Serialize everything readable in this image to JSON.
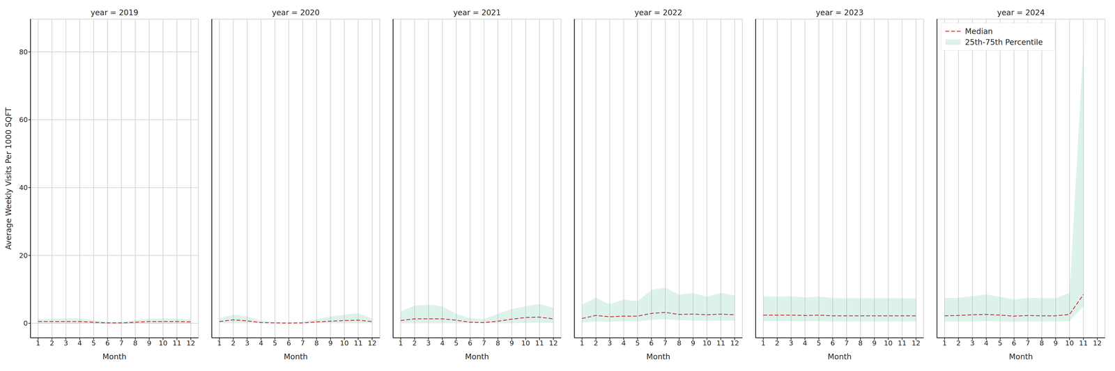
{
  "chart_data": [
    {
      "type": "line",
      "title": "year = 2019",
      "xlabel": "Month",
      "ylabel": "Average Weekly Visits Per 1000 SQFT",
      "tick_labels": true,
      "grid": true,
      "x": [
        1,
        2,
        3,
        4,
        5,
        6,
        7,
        8,
        9,
        10,
        11,
        12
      ],
      "xlim": [
        0.45,
        12.55
      ],
      "xticks": [
        1,
        2,
        3,
        4,
        5,
        6,
        7,
        8,
        9,
        10,
        11,
        12
      ],
      "ylim": [
        -4.3,
        89.7
      ],
      "yticks": [
        0,
        20,
        40,
        60,
        80
      ],
      "series": [
        {
          "name": "Median",
          "type": "line",
          "line_style": "dashed",
          "color": "#c8363d",
          "values": [
            0.5,
            0.5,
            0.5,
            0.5,
            0.3,
            0.1,
            0.1,
            0.3,
            0.5,
            0.5,
            0.5,
            0.4
          ]
        },
        {
          "name": "25th-75th Percentile",
          "type": "area",
          "color": "#66c2a5",
          "values": [
            [
              0,
              1.2
            ],
            [
              0,
              1.3
            ],
            [
              0,
              1.4
            ],
            [
              0,
              1.4
            ],
            [
              0,
              0.9
            ],
            [
              0,
              0.4
            ],
            [
              0,
              0.4
            ],
            [
              0,
              0.9
            ],
            [
              0,
              1.3
            ],
            [
              0,
              1.4
            ],
            [
              0,
              1.3
            ],
            [
              0,
              1.1
            ]
          ]
        }
      ]
    },
    {
      "type": "line",
      "title": "year = 2020",
      "xlabel": "Month",
      "tick_labels": "x",
      "grid": true,
      "x": [
        1,
        2,
        3,
        4,
        5,
        6,
        7,
        8,
        9,
        10,
        11,
        12
      ],
      "xlim": [
        0.45,
        12.55
      ],
      "xticks": [
        1,
        2,
        3,
        4,
        5,
        6,
        7,
        8,
        9,
        10,
        11,
        12
      ],
      "ylim": [
        -4.3,
        89.7
      ],
      "yticks": [
        0,
        20,
        40,
        60,
        80
      ],
      "series": [
        {
          "name": "Median",
          "type": "line",
          "line_style": "dashed",
          "color": "#c8363d",
          "values": [
            0.5,
            1.0,
            0.7,
            0.2,
            0.1,
            0.05,
            0.1,
            0.4,
            0.6,
            0.8,
            0.9,
            0.5
          ]
        },
        {
          "name": "25th-75th Percentile",
          "type": "area",
          "color": "#66c2a5",
          "values": [
            [
              0,
              1.5
            ],
            [
              0,
              2.5
            ],
            [
              0,
              2.0
            ],
            [
              0,
              0.8
            ],
            [
              0,
              0.3
            ],
            [
              0,
              0.2
            ],
            [
              0,
              0.5
            ],
            [
              0,
              1.2
            ],
            [
              0,
              2.0
            ],
            [
              0,
              2.5
            ],
            [
              0,
              3.0
            ],
            [
              0,
              1.3
            ]
          ]
        }
      ]
    },
    {
      "type": "line",
      "title": "year = 2021",
      "xlabel": "Month",
      "tick_labels": "x",
      "grid": true,
      "x": [
        1,
        2,
        3,
        4,
        5,
        6,
        7,
        8,
        9,
        10,
        11,
        12
      ],
      "xlim": [
        0.45,
        12.55
      ],
      "xticks": [
        1,
        2,
        3,
        4,
        5,
        6,
        7,
        8,
        9,
        10,
        11,
        12
      ],
      "ylim": [
        -4.3,
        89.7
      ],
      "yticks": [
        0,
        20,
        40,
        60,
        80
      ],
      "series": [
        {
          "name": "Median",
          "type": "line",
          "line_style": "dashed",
          "color": "#c8363d",
          "values": [
            0.8,
            1.3,
            1.3,
            1.3,
            0.9,
            0.3,
            0.2,
            0.6,
            1.2,
            1.7,
            1.8,
            1.3
          ]
        },
        {
          "name": "25th-75th Percentile",
          "type": "area",
          "color": "#66c2a5",
          "values": [
            [
              0,
              3.5
            ],
            [
              0,
              5.2
            ],
            [
              0,
              5.5
            ],
            [
              0,
              5.0
            ],
            [
              0,
              2.8
            ],
            [
              0,
              1.5
            ],
            [
              0,
              1.2
            ],
            [
              0,
              2.8
            ],
            [
              0,
              4.2
            ],
            [
              0.1,
              5.0
            ],
            [
              0.2,
              5.7
            ],
            [
              0.1,
              4.6
            ]
          ]
        }
      ]
    },
    {
      "type": "line",
      "title": "year = 2022",
      "xlabel": "Month",
      "tick_labels": "x",
      "grid": true,
      "x": [
        1,
        2,
        3,
        4,
        5,
        6,
        7,
        8,
        9,
        10,
        11,
        12
      ],
      "xlim": [
        0.45,
        12.55
      ],
      "xticks": [
        1,
        2,
        3,
        4,
        5,
        6,
        7,
        8,
        9,
        10,
        11,
        12
      ],
      "ylim": [
        -4.3,
        89.7
      ],
      "yticks": [
        0,
        20,
        40,
        60,
        80
      ],
      "series": [
        {
          "name": "Median",
          "type": "line",
          "line_style": "dashed",
          "color": "#c8363d",
          "values": [
            1.4,
            2.3,
            1.9,
            2.1,
            2.1,
            2.9,
            3.2,
            2.6,
            2.7,
            2.5,
            2.7,
            2.5
          ]
        },
        {
          "name": "25th-75th Percentile",
          "type": "area",
          "color": "#66c2a5",
          "values": [
            [
              0.2,
              5.5
            ],
            [
              0.5,
              7.5
            ],
            [
              0.4,
              5.6
            ],
            [
              0.6,
              7.0
            ],
            [
              0.5,
              6.5
            ],
            [
              1.0,
              9.8
            ],
            [
              1.2,
              10.5
            ],
            [
              0.9,
              8.4
            ],
            [
              0.8,
              8.9
            ],
            [
              0.7,
              7.8
            ],
            [
              0.8,
              9.0
            ],
            [
              0.7,
              8.2
            ]
          ]
        }
      ]
    },
    {
      "type": "line",
      "title": "year = 2023",
      "xlabel": "Month",
      "tick_labels": "x",
      "grid": true,
      "x": [
        1,
        2,
        3,
        4,
        5,
        6,
        7,
        8,
        9,
        10,
        11,
        12
      ],
      "xlim": [
        0.45,
        12.55
      ],
      "xticks": [
        1,
        2,
        3,
        4,
        5,
        6,
        7,
        8,
        9,
        10,
        11,
        12
      ],
      "ylim": [
        -4.3,
        89.7
      ],
      "yticks": [
        0,
        20,
        40,
        60,
        80
      ],
      "series": [
        {
          "name": "Median",
          "type": "line",
          "line_style": "dashed",
          "color": "#c8363d",
          "values": [
            2.4,
            2.4,
            2.4,
            2.3,
            2.4,
            2.2,
            2.2,
            2.2,
            2.2,
            2.2,
            2.2,
            2.2
          ]
        },
        {
          "name": "25th-75th Percentile",
          "type": "area",
          "color": "#66c2a5",
          "values": [
            [
              0.6,
              8.0
            ],
            [
              0.6,
              7.8
            ],
            [
              0.6,
              8.0
            ],
            [
              0.6,
              7.6
            ],
            [
              0.6,
              7.9
            ],
            [
              0.5,
              7.4
            ],
            [
              0.5,
              7.4
            ],
            [
              0.5,
              7.4
            ],
            [
              0.5,
              7.4
            ],
            [
              0.5,
              7.4
            ],
            [
              0.5,
              7.4
            ],
            [
              0.5,
              7.3
            ]
          ]
        }
      ]
    },
    {
      "type": "line",
      "title": "year = 2024",
      "xlabel": "Month",
      "tick_labels": "x",
      "grid": true,
      "legend": "upper left",
      "x": [
        1,
        2,
        3,
        4,
        5,
        6,
        7,
        8,
        9,
        10,
        11
      ],
      "xlim": [
        0.45,
        12.55
      ],
      "xticks": [
        1,
        2,
        3,
        4,
        5,
        6,
        7,
        8,
        9,
        10,
        11,
        12
      ],
      "ylim": [
        -4.3,
        89.7
      ],
      "yticks": [
        0,
        20,
        40,
        60,
        80
      ],
      "series": [
        {
          "name": "Median",
          "type": "line",
          "line_style": "dashed",
          "color": "#c8363d",
          "values": [
            2.2,
            2.3,
            2.5,
            2.6,
            2.4,
            2.1,
            2.3,
            2.2,
            2.2,
            2.6,
            8.5
          ]
        },
        {
          "name": "25th-75th Percentile",
          "type": "area",
          "color": "#66c2a5",
          "values": [
            [
              0.5,
              7.4
            ],
            [
              0.5,
              7.5
            ],
            [
              0.5,
              8.0
            ],
            [
              0.6,
              8.5
            ],
            [
              0.5,
              7.8
            ],
            [
              0.4,
              7.0
            ],
            [
              0.5,
              7.5
            ],
            [
              0.5,
              7.4
            ],
            [
              0.5,
              7.4
            ],
            [
              0.6,
              9.0
            ],
            [
              5.0,
              82
            ]
          ]
        }
      ]
    }
  ]
}
